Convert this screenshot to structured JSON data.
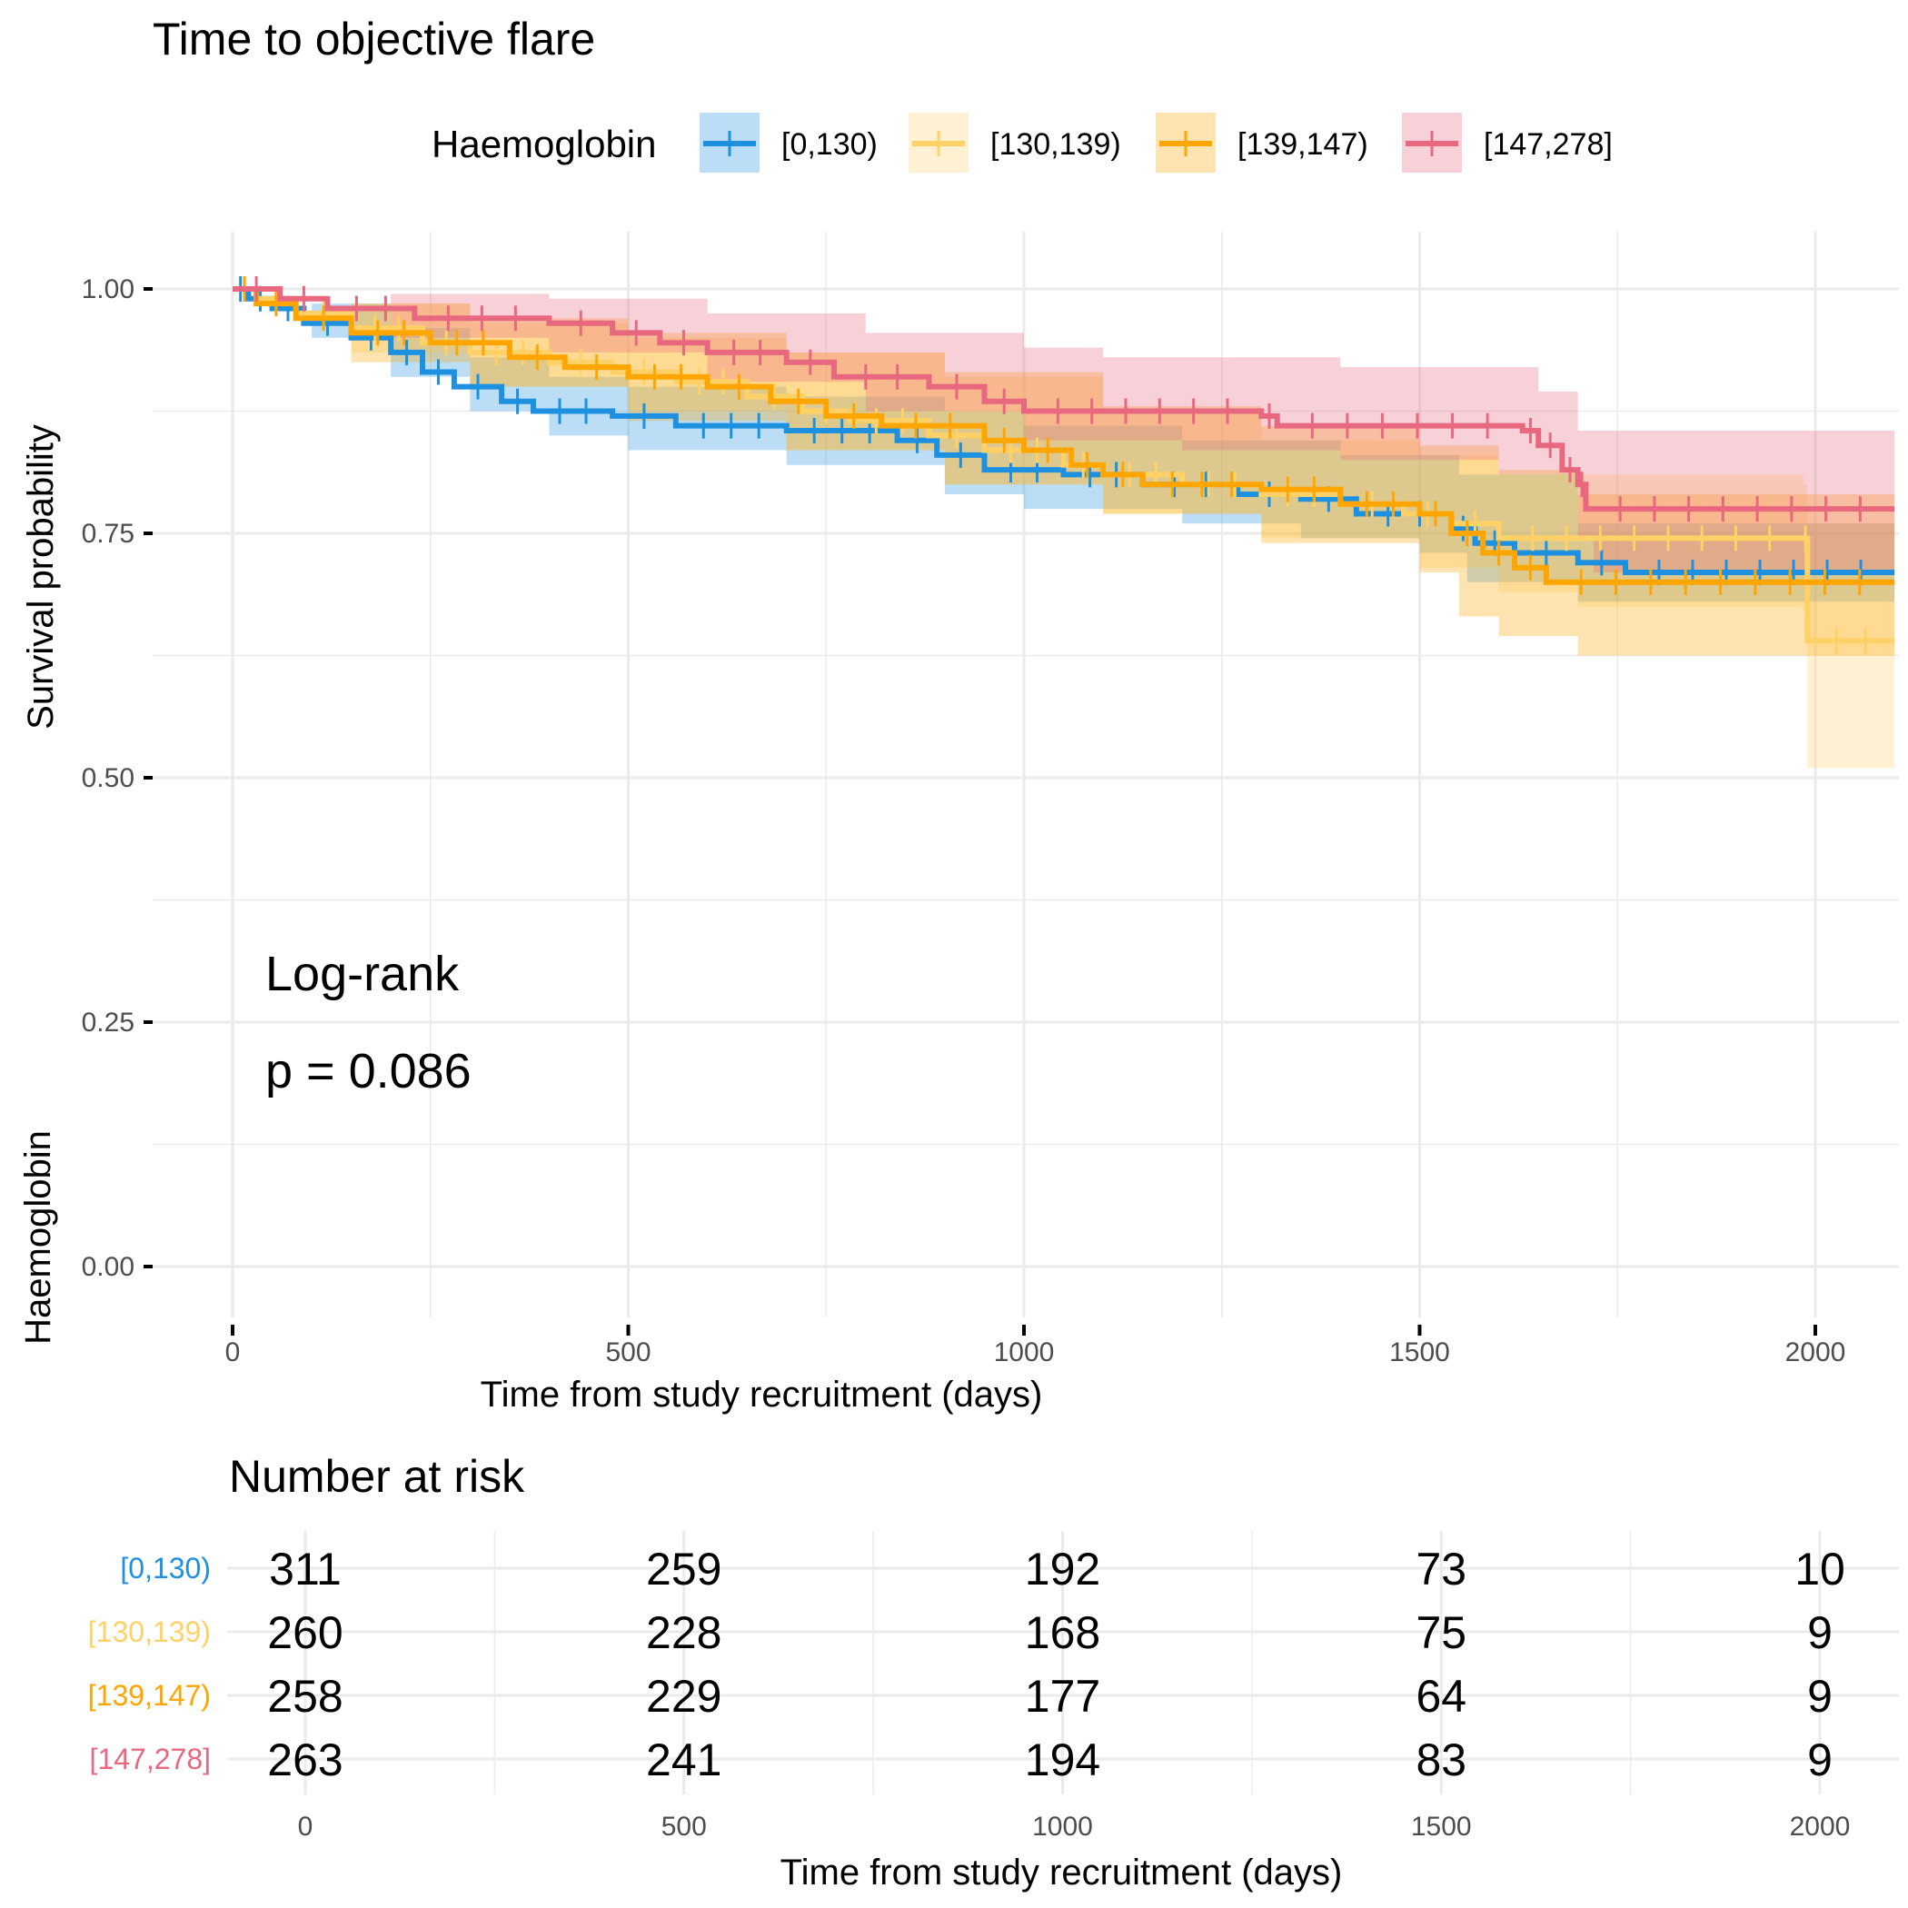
{
  "chart_data": {
    "type": "line",
    "subtype": "kaplan-meier",
    "title": "Time to objective flare",
    "xlabel": "Time from study recruitment (days)",
    "ylabel": "Survival probability",
    "xlim": [
      0,
      2100
    ],
    "ylim": [
      0,
      1
    ],
    "x_ticks": [
      0,
      500,
      1000,
      1500,
      2000
    ],
    "x_tick_labels": [
      "0",
      "500",
      "1000",
      "1500",
      "2000"
    ],
    "y_ticks": [
      0,
      0.25,
      0.5,
      0.75,
      1.0
    ],
    "y_tick_labels": [
      "0.00",
      "0.25",
      "0.50",
      "0.75",
      "1.00"
    ],
    "grid": true,
    "legend": {
      "title": "Haemoglobin",
      "position": "top"
    },
    "annotation": {
      "line1": "Log-rank",
      "line2": "p = 0.086"
    },
    "series": [
      {
        "name": "[0,130)",
        "color": "#1E90E0",
        "steps": [
          [
            0,
            1.0
          ],
          [
            20,
            0.99
          ],
          [
            50,
            0.98
          ],
          [
            90,
            0.965
          ],
          [
            150,
            0.95
          ],
          [
            200,
            0.935
          ],
          [
            240,
            0.915
          ],
          [
            280,
            0.9
          ],
          [
            340,
            0.885
          ],
          [
            380,
            0.875
          ],
          [
            480,
            0.87
          ],
          [
            560,
            0.86
          ],
          [
            700,
            0.855
          ],
          [
            840,
            0.845
          ],
          [
            890,
            0.83
          ],
          [
            950,
            0.815
          ],
          [
            1050,
            0.81
          ],
          [
            1150,
            0.8
          ],
          [
            1270,
            0.79
          ],
          [
            1350,
            0.785
          ],
          [
            1420,
            0.77
          ],
          [
            1540,
            0.755
          ],
          [
            1570,
            0.74
          ],
          [
            1620,
            0.73
          ],
          [
            1700,
            0.72
          ],
          [
            1760,
            0.71
          ],
          [
            2100,
            0.71
          ]
        ],
        "ci_lower": [
          [
            0,
            1.0
          ],
          [
            100,
            0.95
          ],
          [
            200,
            0.91
          ],
          [
            300,
            0.875
          ],
          [
            400,
            0.85
          ],
          [
            500,
            0.835
          ],
          [
            700,
            0.82
          ],
          [
            900,
            0.79
          ],
          [
            1000,
            0.775
          ],
          [
            1200,
            0.76
          ],
          [
            1350,
            0.745
          ],
          [
            1500,
            0.73
          ],
          [
            1560,
            0.7
          ],
          [
            1700,
            0.68
          ],
          [
            2100,
            0.68
          ]
        ],
        "ci_upper": [
          [
            0,
            1.0
          ],
          [
            100,
            0.985
          ],
          [
            200,
            0.96
          ],
          [
            300,
            0.93
          ],
          [
            400,
            0.91
          ],
          [
            500,
            0.9
          ],
          [
            700,
            0.89
          ],
          [
            900,
            0.875
          ],
          [
            1000,
            0.86
          ],
          [
            1200,
            0.845
          ],
          [
            1400,
            0.83
          ],
          [
            1550,
            0.81
          ],
          [
            1700,
            0.76
          ],
          [
            2100,
            0.745
          ]
        ]
      },
      {
        "name": "[130,139)",
        "color": "#FFD166",
        "steps": [
          [
            0,
            1.0
          ],
          [
            30,
            0.99
          ],
          [
            80,
            0.975
          ],
          [
            150,
            0.96
          ],
          [
            240,
            0.945
          ],
          [
            300,
            0.935
          ],
          [
            400,
            0.925
          ],
          [
            480,
            0.915
          ],
          [
            560,
            0.905
          ],
          [
            650,
            0.89
          ],
          [
            720,
            0.875
          ],
          [
            780,
            0.865
          ],
          [
            880,
            0.85
          ],
          [
            950,
            0.835
          ],
          [
            1050,
            0.82
          ],
          [
            1100,
            0.81
          ],
          [
            1200,
            0.8
          ],
          [
            1300,
            0.79
          ],
          [
            1400,
            0.78
          ],
          [
            1480,
            0.77
          ],
          [
            1540,
            0.76
          ],
          [
            1600,
            0.745
          ],
          [
            1985,
            0.745
          ],
          [
            1990,
            0.64
          ],
          [
            2100,
            0.64
          ]
        ],
        "ci_lower": [
          [
            0,
            1.0
          ],
          [
            150,
            0.935
          ],
          [
            300,
            0.9
          ],
          [
            500,
            0.875
          ],
          [
            700,
            0.835
          ],
          [
            900,
            0.8
          ],
          [
            1100,
            0.77
          ],
          [
            1300,
            0.745
          ],
          [
            1500,
            0.715
          ],
          [
            1600,
            0.69
          ],
          [
            1700,
            0.675
          ],
          [
            1985,
            0.67
          ],
          [
            1990,
            0.51
          ],
          [
            2100,
            0.51
          ]
        ],
        "ci_upper": [
          [
            0,
            1.0
          ],
          [
            150,
            0.985
          ],
          [
            300,
            0.965
          ],
          [
            500,
            0.95
          ],
          [
            700,
            0.935
          ],
          [
            900,
            0.91
          ],
          [
            1100,
            0.875
          ],
          [
            1300,
            0.845
          ],
          [
            1500,
            0.83
          ],
          [
            1600,
            0.81
          ],
          [
            1985,
            0.8
          ],
          [
            1990,
            0.76
          ],
          [
            2100,
            0.76
          ]
        ]
      },
      {
        "name": "[139,147)",
        "color": "#FFA500",
        "steps": [
          [
            0,
            1.0
          ],
          [
            30,
            0.985
          ],
          [
            80,
            0.97
          ],
          [
            150,
            0.955
          ],
          [
            250,
            0.945
          ],
          [
            350,
            0.93
          ],
          [
            420,
            0.92
          ],
          [
            500,
            0.91
          ],
          [
            600,
            0.9
          ],
          [
            680,
            0.885
          ],
          [
            750,
            0.87
          ],
          [
            820,
            0.86
          ],
          [
            950,
            0.845
          ],
          [
            1000,
            0.835
          ],
          [
            1060,
            0.82
          ],
          [
            1100,
            0.81
          ],
          [
            1150,
            0.8
          ],
          [
            1300,
            0.795
          ],
          [
            1400,
            0.78
          ],
          [
            1500,
            0.77
          ],
          [
            1540,
            0.75
          ],
          [
            1580,
            0.73
          ],
          [
            1620,
            0.715
          ],
          [
            1660,
            0.7
          ],
          [
            2100,
            0.7
          ]
        ],
        "ci_lower": [
          [
            0,
            1.0
          ],
          [
            150,
            0.925
          ],
          [
            300,
            0.9
          ],
          [
            500,
            0.865
          ],
          [
            700,
            0.835
          ],
          [
            900,
            0.8
          ],
          [
            1100,
            0.77
          ],
          [
            1300,
            0.74
          ],
          [
            1500,
            0.71
          ],
          [
            1550,
            0.665
          ],
          [
            1600,
            0.645
          ],
          [
            1700,
            0.625
          ],
          [
            2100,
            0.625
          ]
        ],
        "ci_upper": [
          [
            0,
            1.0
          ],
          [
            150,
            0.985
          ],
          [
            300,
            0.97
          ],
          [
            500,
            0.955
          ],
          [
            700,
            0.935
          ],
          [
            900,
            0.915
          ],
          [
            1100,
            0.88
          ],
          [
            1300,
            0.86
          ],
          [
            1500,
            0.84
          ],
          [
            1600,
            0.815
          ],
          [
            1700,
            0.79
          ],
          [
            2100,
            0.785
          ]
        ]
      },
      {
        "name": "[147,278]",
        "color": "#E8687F",
        "steps": [
          [
            0,
            1.0
          ],
          [
            60,
            0.99
          ],
          [
            120,
            0.98
          ],
          [
            230,
            0.97
          ],
          [
            400,
            0.965
          ],
          [
            480,
            0.955
          ],
          [
            540,
            0.945
          ],
          [
            600,
            0.935
          ],
          [
            700,
            0.925
          ],
          [
            760,
            0.91
          ],
          [
            880,
            0.9
          ],
          [
            950,
            0.885
          ],
          [
            1000,
            0.875
          ],
          [
            1300,
            0.87
          ],
          [
            1320,
            0.86
          ],
          [
            1630,
            0.855
          ],
          [
            1650,
            0.84
          ],
          [
            1680,
            0.815
          ],
          [
            1700,
            0.8
          ],
          [
            1710,
            0.775
          ],
          [
            2100,
            0.775
          ]
        ],
        "ci_lower": [
          [
            0,
            1.0
          ],
          [
            200,
            0.95
          ],
          [
            400,
            0.935
          ],
          [
            600,
            0.905
          ],
          [
            800,
            0.875
          ],
          [
            1000,
            0.845
          ],
          [
            1200,
            0.835
          ],
          [
            1400,
            0.825
          ],
          [
            1600,
            0.81
          ],
          [
            1700,
            0.745
          ],
          [
            1720,
            0.71
          ],
          [
            2100,
            0.705
          ]
        ],
        "ci_upper": [
          [
            0,
            1.0
          ],
          [
            200,
            0.995
          ],
          [
            400,
            0.99
          ],
          [
            600,
            0.975
          ],
          [
            800,
            0.955
          ],
          [
            1000,
            0.94
          ],
          [
            1100,
            0.93
          ],
          [
            1400,
            0.92
          ],
          [
            1650,
            0.895
          ],
          [
            1700,
            0.855
          ],
          [
            2100,
            0.85
          ]
        ]
      }
    ],
    "risk_table": {
      "title": "Number at risk",
      "ylabel": "Haemoglobin",
      "xlabel": "Time from study recruitment (days)",
      "times": [
        0,
        500,
        1000,
        1500,
        2000
      ],
      "time_labels": [
        "0",
        "500",
        "1000",
        "1500",
        "2000"
      ],
      "rows": [
        {
          "strata": "[0,130)",
          "color": "#1E90E0",
          "counts": [
            "311",
            "259",
            "192",
            "73",
            "10"
          ]
        },
        {
          "strata": "[130,139)",
          "color": "#FFD166",
          "counts": [
            "260",
            "228",
            "168",
            "75",
            "9"
          ]
        },
        {
          "strata": "[139,147)",
          "color": "#FFA500",
          "counts": [
            "258",
            "229",
            "177",
            "64",
            "9"
          ]
        },
        {
          "strata": "[147,278]",
          "color": "#E8687F",
          "counts": [
            "263",
            "241",
            "194",
            "83",
            "9"
          ]
        }
      ]
    }
  }
}
